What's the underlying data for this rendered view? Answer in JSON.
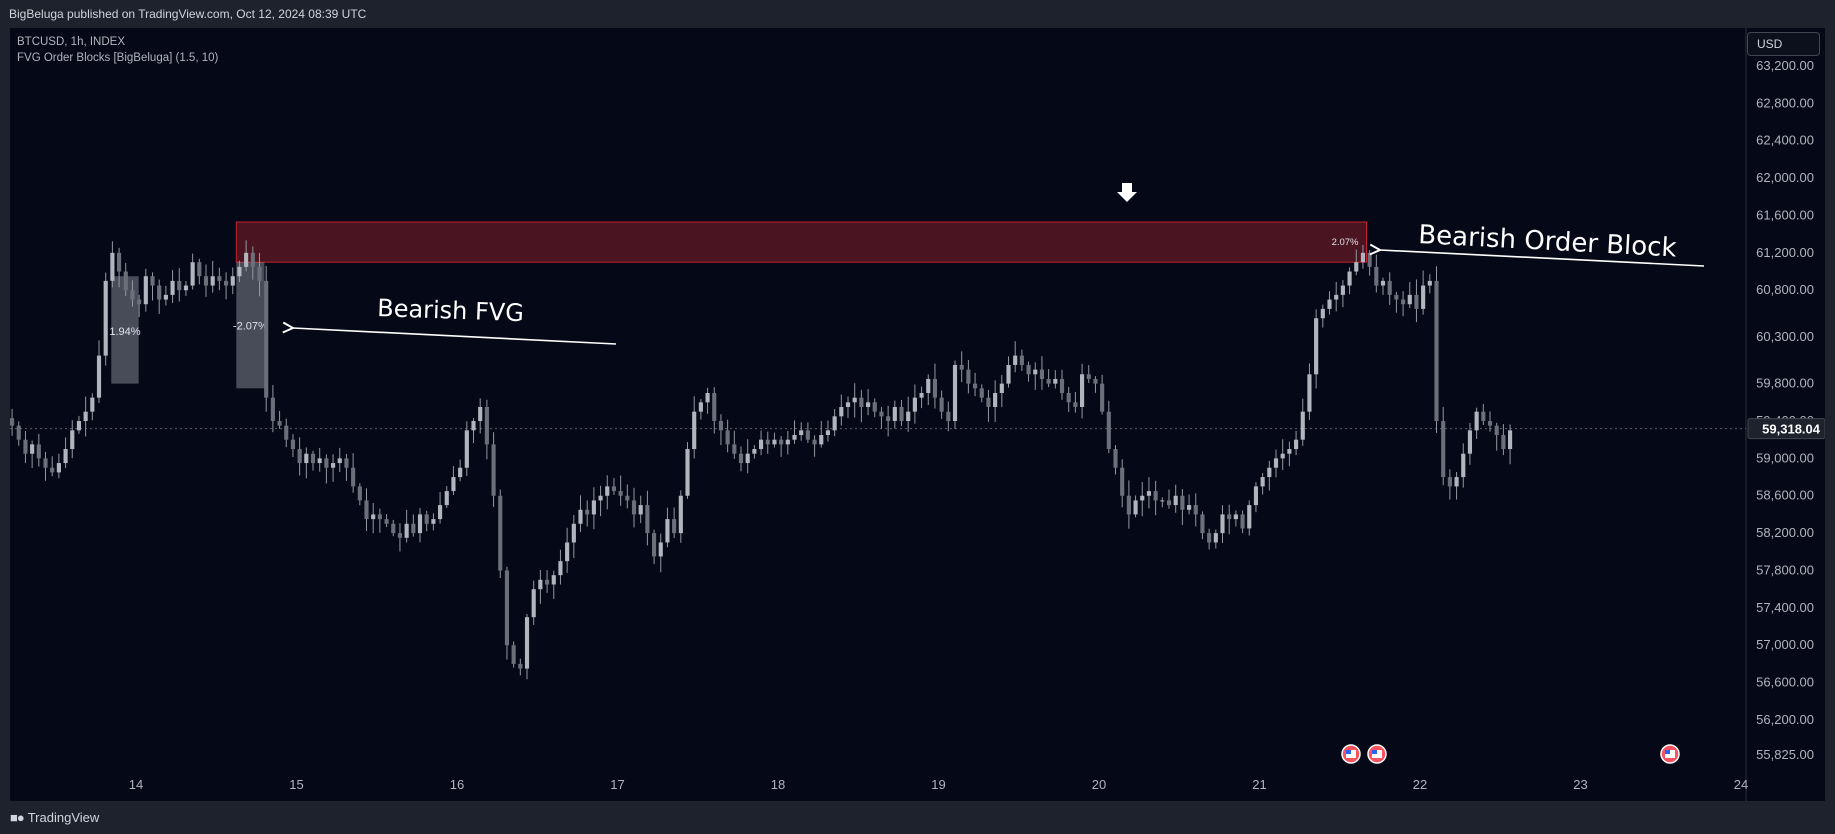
{
  "header": {
    "publish_text": "BigBeluga published on TradingView.com, Oct 12, 2024 08:39 UTC"
  },
  "legend": {
    "symbol_line": "BTCUSD, 1h, INDEX",
    "indicator_line": "FVG Order Blocks [BigBeluga] (1.5, 10)"
  },
  "currency_button": "USD",
  "footer": {
    "brand": "TradingView",
    "logo_icon": "tradingview-logo-icon"
  },
  "colors": {
    "background": "#050816",
    "candle": "#9598a1",
    "order_block_fill": "#4a1520",
    "order_block_border": "#c2212f",
    "fvg_fill": "#8a8f99"
  },
  "chart_data": {
    "type": "candlestick",
    "symbol": "BTCUSD",
    "interval": "1h",
    "x_ticks": [
      "14",
      "15",
      "16",
      "17",
      "18",
      "19",
      "20",
      "21",
      "22",
      "23",
      "24"
    ],
    "y_ticks": [
      "63,200.00",
      "62,800.00",
      "62,400.00",
      "62,000.00",
      "61,600.00",
      "61,200.00",
      "60,800.00",
      "60,300.00",
      "59,800.00",
      "59,400.00",
      "59,000.00",
      "58,600.00",
      "58,200.00",
      "57,800.00",
      "57,400.00",
      "57,000.00",
      "56,600.00",
      "56,200.00",
      "55,825.00"
    ],
    "ylim": [
      55825,
      63200
    ],
    "last_price": 59318.04,
    "last_price_label": "59,318.04",
    "close_series": [
      59350,
      59200,
      59050,
      59150,
      59000,
      58900,
      58850,
      58950,
      59100,
      59300,
      59400,
      59500,
      59650,
      60100,
      60900,
      61200,
      61000,
      60800,
      60700,
      60650,
      60950,
      60850,
      60700,
      60750,
      60900,
      60800,
      60850,
      61100,
      60950,
      60850,
      60950,
      60900,
      60850,
      60950,
      61050,
      61200,
      61050,
      60900,
      59650,
      59400,
      59350,
      59200,
      59100,
      58950,
      59050,
      58950,
      59000,
      58900,
      58950,
      59000,
      58900,
      58700,
      58550,
      58350,
      58400,
      58350,
      58300,
      58200,
      58150,
      58300,
      58200,
      58400,
      58300,
      58350,
      58500,
      58650,
      58800,
      58900,
      59300,
      59400,
      59550,
      59150,
      58600,
      57800,
      57000,
      56800,
      56750,
      57300,
      57600,
      57700,
      57650,
      57750,
      57900,
      58100,
      58300,
      58450,
      58400,
      58550,
      58600,
      58700,
      58650,
      58600,
      58550,
      58400,
      58500,
      58200,
      57950,
      58100,
      58350,
      58200,
      58600,
      59100,
      59500,
      59600,
      59700,
      59400,
      59300,
      59150,
      59050,
      58950,
      59050,
      59100,
      59200,
      59150,
      59200,
      59150,
      59200,
      59250,
      59300,
      59200,
      59150,
      59250,
      59300,
      59450,
      59550,
      59600,
      59650,
      59550,
      59600,
      59500,
      59450,
      59400,
      59550,
      59400,
      59500,
      59650,
      59700,
      59850,
      59650,
      59500,
      59400,
      60000,
      59950,
      59800,
      59750,
      59650,
      59550,
      59700,
      59800,
      60000,
      60100,
      60000,
      59900,
      59950,
      59850,
      59800,
      59850,
      59700,
      59600,
      59550,
      59900,
      59850,
      59800,
      59500,
      59100,
      58900,
      58600,
      58400,
      58550,
      58600,
      58650,
      58550,
      58550,
      58500,
      58600,
      58450,
      58500,
      58400,
      58200,
      58100,
      58200,
      58400,
      58350,
      58400,
      58250,
      58500,
      58700,
      58800,
      58900,
      59000,
      59050,
      59100,
      59200,
      59500,
      59900,
      60500,
      60600,
      60700,
      60750,
      60850,
      61000,
      61100,
      61200,
      61050,
      60850,
      60900,
      60750,
      60700,
      60650,
      60750,
      60600,
      60850,
      60900,
      59400,
      58800,
      58700,
      58800,
      59050,
      59300,
      59500,
      59400,
      59350,
      59250,
      59100,
      59300
    ]
  },
  "annotations": {
    "order_block": {
      "label": "Bearish Order Block",
      "percent": "2.07%",
      "top": 61530,
      "bottom": 61100
    },
    "fvg_bearish": {
      "label": "Bearish FVG",
      "percent": "-2.07%",
      "top": 61100,
      "bottom": 59750
    },
    "fvg_bullish": {
      "percent": "1.94%",
      "top": 60950,
      "bottom": 59800
    },
    "event_icons": [
      "us-flag-icon",
      "us-flag-icon",
      "us-flag-icon"
    ]
  }
}
